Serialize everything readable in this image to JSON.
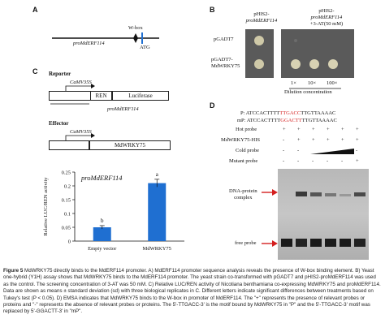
{
  "panel_a": {
    "letter": "A",
    "wbox_label": "W-box",
    "promoter_label": "proMdERF114",
    "atg_label": "ATG"
  },
  "panel_b": {
    "letter": "B",
    "col1_header": [
      "pHIS2-",
      "proMdERF114"
    ],
    "col2_header": [
      "pHIS2-",
      "proMdERF114",
      "+3-AT(50 mM)"
    ],
    "row1_label": "pGADT7",
    "row2_label": [
      "pGADT7-",
      "MdWRKY75"
    ],
    "dilutions": [
      "1×",
      "10×",
      "100×"
    ],
    "dilution_title": "Dilution concentration"
  },
  "panel_c": {
    "letter": "C",
    "reporter_title": "Reporter",
    "promoter1": "CaMV35S",
    "ren": "REN",
    "luciferase": "Luciferase",
    "promoter2": "proMdERF114",
    "effector_title": "Effector",
    "promoter3": "CaMV35S",
    "effector_gene": "MdWRKY75"
  },
  "chart_data": {
    "type": "bar",
    "title": "proMdERF114",
    "categories": [
      "Empty vector",
      "MdWRKY75"
    ],
    "values": [
      0.05,
      0.21
    ],
    "errors": [
      0.006,
      0.014
    ],
    "letters": [
      "b",
      "a"
    ],
    "ylabel": "Relative LUC/REN activity",
    "ylim": [
      0,
      0.25
    ],
    "yticks": [
      "0",
      "0.05",
      "0.1",
      "0.15",
      "0.2",
      "0.25"
    ],
    "bar_color": "#1f6fd1"
  },
  "panel_d": {
    "letter": "D",
    "p_probe_prefix": "P: ATCCACTTTT",
    "p_probe_motif": "TTGACC",
    "p_probe_suffix": "TTGTTAAAAC",
    "mp_probe_prefix": "mP: ATCCACTTTT",
    "mp_probe_motif": "GGACTT",
    "mp_probe_suffix": "TTGTTAAAAC",
    "rows": [
      {
        "label": "Hot probe",
        "marks": [
          "+",
          "+",
          "+",
          "+",
          "+",
          "+"
        ]
      },
      {
        "label": "MdWRKY75-HIS",
        "marks": [
          "-",
          "+",
          "+",
          "+",
          "+",
          "+"
        ]
      },
      {
        "label": "Cold probe",
        "marks": [
          "-",
          "-",
          "",
          "",
          "",
          "-"
        ]
      },
      {
        "label": "Mutant probe",
        "marks": [
          "-",
          "-",
          "-",
          "-",
          "-",
          "+"
        ]
      }
    ],
    "complex_label": [
      "DNA-protein",
      "complex"
    ],
    "free_probe_label": "free probe",
    "arrow_color": "#d41f1f"
  },
  "caption": {
    "fig": "Figure 5",
    "text": " MdWRKY75 directly binds to the MdERF114 promoter. A) MdERF114 promoter sequence analysis reveals the presence of W-box binding element. B) Yeast one-hybrid (Y1H) assay shows that MdWRKY75 binds to the MdERF114 promoter. The yeast strain co-transformed with pGADT7 and pHIS2-proMdERF114 was used as the control. The screening concentration of 3-AT was 50 mM. C) Relative LUC/REN activity of Nicotiana benthamiana co-expressing MdWRKY75 and proMdERF114. Data are shown as means ± standard deviation (sd) with three biological replicates in C. Different letters indicate significant differences between treatments based on Tukey's test (P < 0.05). D) EMSA indicates that MdWRKY75 binds to the W-box in promoter of MdERF114. The \"+\" represents the presence of relevant probes or proteins and \"-\" represents the absence of relevant probes or proteins. The 5'-TTGACC-3' is the motif bound by MdWRKY75 in \"P\" and the 5'-TTGACC-3' motif was replaced by 5'-GGACTT-3' in \"mP\"."
  }
}
